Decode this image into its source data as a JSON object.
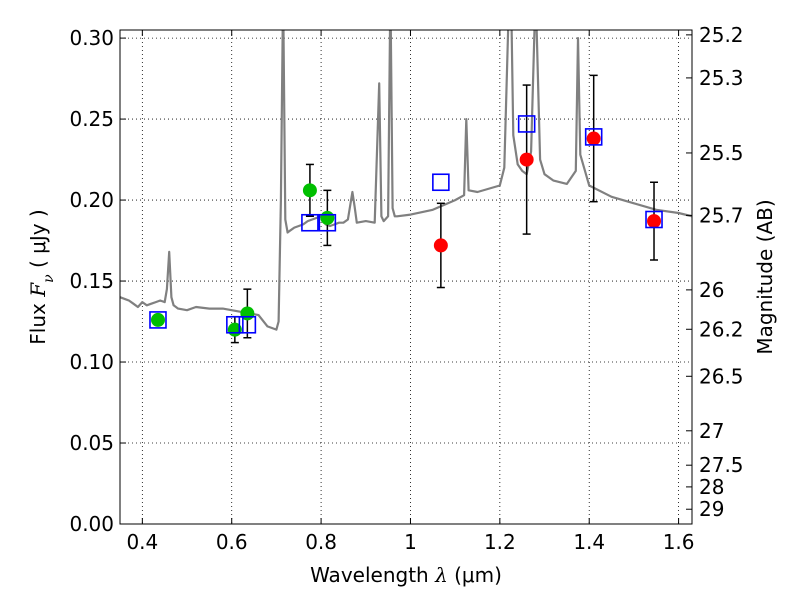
{
  "chart_data": {
    "type": "scatter",
    "xlabel": {
      "prefix": "Wavelength  ",
      "var": "λ",
      "suffix": " (μm)"
    },
    "ylabel": {
      "prefix": "Flux  ",
      "var": "F",
      "sub": "ν",
      "suffix": "  ( μJy )"
    },
    "y2label": "Magnitude (AB)",
    "xlim": [
      0.35,
      1.63
    ],
    "ylim": [
      0.0,
      0.305
    ],
    "grid": true,
    "x_ticks": [
      0.4,
      0.6,
      0.8,
      1.0,
      1.2,
      1.4,
      1.6
    ],
    "x_tick_labels": [
      "0.4",
      "0.6",
      "0.8",
      "1",
      "1.2",
      "1.4",
      "1.6"
    ],
    "y_ticks": [
      0.0,
      0.05,
      0.1,
      0.15,
      0.2,
      0.25,
      0.3
    ],
    "y_tick_labels": [
      "0.00",
      "0.05",
      "0.10",
      "0.15",
      "0.20",
      "0.25",
      "0.30"
    ],
    "y2_ticks": [
      {
        "value": 25.2,
        "label": "25.2"
      },
      {
        "value": 25.3,
        "label": "25.3"
      },
      {
        "value": 25.5,
        "label": "25.5"
      },
      {
        "value": 25.7,
        "label": "25.7"
      },
      {
        "value": 26.0,
        "label": "26"
      },
      {
        "value": 26.2,
        "label": "26.2"
      },
      {
        "value": 26.5,
        "label": "26.5"
      },
      {
        "value": 27.0,
        "label": "27"
      },
      {
        "value": 27.5,
        "label": "27.5"
      },
      {
        "value": 28.0,
        "label": "28"
      },
      {
        "value": 29.0,
        "label": "29"
      }
    ],
    "spectrum": {
      "color": "#808080",
      "x": [
        0.35,
        0.37,
        0.38,
        0.39,
        0.4,
        0.41,
        0.42,
        0.43,
        0.44,
        0.45,
        0.455,
        0.46,
        0.465,
        0.47,
        0.48,
        0.5,
        0.52,
        0.55,
        0.58,
        0.6,
        0.62,
        0.64,
        0.66,
        0.68,
        0.69,
        0.7,
        0.705,
        0.71,
        0.715,
        0.72,
        0.725,
        0.73,
        0.74,
        0.75,
        0.76,
        0.77,
        0.78,
        0.79,
        0.8,
        0.81,
        0.82,
        0.83,
        0.84,
        0.85,
        0.86,
        0.87,
        0.875,
        0.88,
        0.9,
        0.92,
        0.93,
        0.935,
        0.94,
        0.95,
        0.955,
        0.96,
        0.965,
        0.97,
        1.0,
        1.05,
        1.1,
        1.12,
        1.125,
        1.13,
        1.15,
        1.2,
        1.21,
        1.22,
        1.225,
        1.23,
        1.24,
        1.25,
        1.26,
        1.27,
        1.28,
        1.29,
        1.3,
        1.32,
        1.35,
        1.37,
        1.375,
        1.38,
        1.4,
        1.45,
        1.5,
        1.55,
        1.6,
        1.63
      ],
      "y": [
        0.14,
        0.138,
        0.136,
        0.134,
        0.137,
        0.135,
        0.136,
        0.137,
        0.138,
        0.137,
        0.145,
        0.168,
        0.14,
        0.135,
        0.133,
        0.132,
        0.134,
        0.133,
        0.133,
        0.132,
        0.131,
        0.13,
        0.129,
        0.122,
        0.121,
        0.12,
        0.125,
        0.2,
        0.33,
        0.188,
        0.18,
        0.181,
        0.183,
        0.184,
        0.185,
        0.187,
        0.188,
        0.189,
        0.19,
        0.185,
        0.184,
        0.185,
        0.186,
        0.186,
        0.188,
        0.205,
        0.196,
        0.186,
        0.187,
        0.186,
        0.272,
        0.19,
        0.187,
        0.19,
        0.33,
        0.195,
        0.19,
        0.19,
        0.191,
        0.194,
        0.2,
        0.203,
        0.25,
        0.206,
        0.205,
        0.209,
        0.22,
        0.32,
        0.33,
        0.24,
        0.222,
        0.218,
        0.216,
        0.23,
        0.33,
        0.225,
        0.216,
        0.212,
        0.21,
        0.218,
        0.3,
        0.228,
        0.209,
        0.202,
        0.198,
        0.194,
        0.192,
        0.19
      ]
    },
    "series": [
      {
        "name": "",
        "marker": "circle",
        "color": "#00bf00",
        "points": [
          {
            "x": 0.435,
            "y": 0.126,
            "err": null
          },
          {
            "x": 0.607,
            "y": 0.12,
            "err": 0.008
          },
          {
            "x": 0.635,
            "y": 0.13,
            "err": 0.015
          },
          {
            "x": 0.775,
            "y": 0.206,
            "err": 0.016
          },
          {
            "x": 0.814,
            "y": 0.189,
            "err": 0.017
          }
        ]
      },
      {
        "name": "",
        "marker": "circle",
        "color": "#ff0000",
        "points": [
          {
            "x": 1.068,
            "y": 0.172,
            "err": 0.026
          },
          {
            "x": 1.26,
            "y": 0.225,
            "err": 0.046
          },
          {
            "x": 1.41,
            "y": 0.238,
            "err": 0.039
          },
          {
            "x": 1.545,
            "y": 0.187,
            "err": 0.024
          }
        ]
      },
      {
        "name": "",
        "marker": "square",
        "color": "#0000ff",
        "points": [
          {
            "x": 0.435,
            "y": 0.126
          },
          {
            "x": 0.607,
            "y": 0.123
          },
          {
            "x": 0.635,
            "y": 0.123
          },
          {
            "x": 0.775,
            "y": 0.186
          },
          {
            "x": 0.814,
            "y": 0.186
          },
          {
            "x": 1.068,
            "y": 0.211
          },
          {
            "x": 1.26,
            "y": 0.247
          },
          {
            "x": 1.41,
            "y": 0.239
          },
          {
            "x": 1.545,
            "y": 0.188
          }
        ]
      }
    ]
  }
}
